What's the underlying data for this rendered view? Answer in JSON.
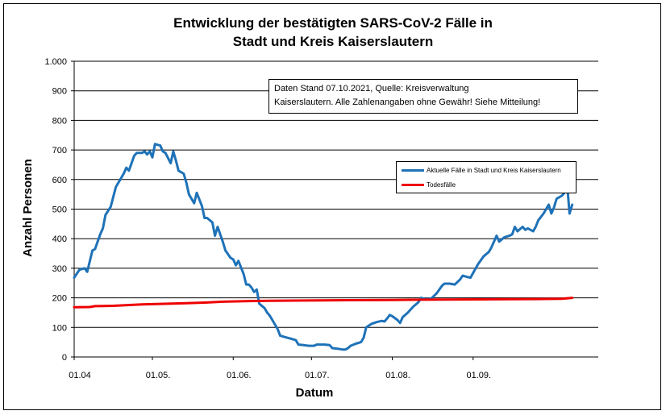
{
  "chart_data": {
    "type": "line",
    "title": [
      "Entwicklung der bestätigten SARS-CoV-2 Fälle in",
      "Stadt und Kreis Kaiserslautern"
    ],
    "xlabel": "Datum",
    "ylabel": "Anzahl Personen",
    "ylim": [
      0,
      1000
    ],
    "yticks": [
      0,
      100,
      200,
      300,
      400,
      500,
      600,
      700,
      800,
      900,
      1000
    ],
    "ytick_labels": [
      "0",
      "100",
      "200",
      "300",
      "400",
      "500",
      "600",
      "700",
      "800",
      "900",
      "1.000"
    ],
    "xlim": [
      "2021-04-01",
      "2021-10-07"
    ],
    "xticks": [
      "2021-04-01",
      "2021-05-01",
      "2021-06-01",
      "2021-07-01",
      "2021-08-01",
      "2021-09-01"
    ],
    "xtick_labels": [
      "01.04",
      "01.05.",
      "01.06.",
      "01.07.",
      "01.08.",
      "01.09."
    ],
    "grid": "horizontal",
    "legend_position": "right",
    "annotation": [
      "Daten Stand 07.10.2021, Quelle: Kreisverwaltung",
      "Kaiserslautern. Alle Zahlenangaben ohne Gewähr! Siehe Mitteilung!"
    ],
    "series": [
      {
        "name": "Aktuelle Fälle in Stadt und Kreis Kaiserslautern",
        "color": "#1e72b8",
        "points": [
          [
            "2021-04-01",
            268
          ],
          [
            "2021-04-03",
            295
          ],
          [
            "2021-04-05",
            300
          ],
          [
            "2021-04-06",
            288
          ],
          [
            "2021-04-08",
            360
          ],
          [
            "2021-04-09",
            365
          ],
          [
            "2021-04-11",
            415
          ],
          [
            "2021-04-12",
            435
          ],
          [
            "2021-04-13",
            480
          ],
          [
            "2021-04-15",
            508
          ],
          [
            "2021-04-17",
            575
          ],
          [
            "2021-04-19",
            605
          ],
          [
            "2021-04-20",
            620
          ],
          [
            "2021-04-21",
            640
          ],
          [
            "2021-04-22",
            630
          ],
          [
            "2021-04-24",
            680
          ],
          [
            "2021-04-25",
            690
          ],
          [
            "2021-04-27",
            690
          ],
          [
            "2021-04-28",
            695
          ],
          [
            "2021-04-29",
            685
          ],
          [
            "2021-04-30",
            695
          ],
          [
            "2021-05-01",
            675
          ],
          [
            "2021-05-02",
            720
          ],
          [
            "2021-05-04",
            715
          ],
          [
            "2021-05-05",
            695
          ],
          [
            "2021-05-06",
            690
          ],
          [
            "2021-05-08",
            655
          ],
          [
            "2021-05-09",
            695
          ],
          [
            "2021-05-10",
            665
          ],
          [
            "2021-05-11",
            630
          ],
          [
            "2021-05-13",
            620
          ],
          [
            "2021-05-14",
            590
          ],
          [
            "2021-05-15",
            550
          ],
          [
            "2021-05-17",
            520
          ],
          [
            "2021-05-18",
            555
          ],
          [
            "2021-05-20",
            510
          ],
          [
            "2021-05-21",
            470
          ],
          [
            "2021-05-22",
            470
          ],
          [
            "2021-05-24",
            455
          ],
          [
            "2021-05-25",
            410
          ],
          [
            "2021-05-26",
            440
          ],
          [
            "2021-05-28",
            390
          ],
          [
            "2021-05-29",
            360
          ],
          [
            "2021-05-31",
            335
          ],
          [
            "2021-06-01",
            330
          ],
          [
            "2021-06-02",
            310
          ],
          [
            "2021-06-03",
            325
          ],
          [
            "2021-06-05",
            280
          ],
          [
            "2021-06-06",
            245
          ],
          [
            "2021-06-07",
            245
          ],
          [
            "2021-06-08",
            235
          ],
          [
            "2021-06-09",
            220
          ],
          [
            "2021-06-10",
            228
          ],
          [
            "2021-06-11",
            180
          ],
          [
            "2021-06-13",
            165
          ],
          [
            "2021-06-14",
            150
          ],
          [
            "2021-06-15",
            140
          ],
          [
            "2021-06-17",
            110
          ],
          [
            "2021-06-18",
            95
          ],
          [
            "2021-06-19",
            72
          ],
          [
            "2021-06-21",
            67
          ],
          [
            "2021-06-23",
            62
          ],
          [
            "2021-06-25",
            57
          ],
          [
            "2021-06-26",
            42
          ],
          [
            "2021-06-28",
            40
          ],
          [
            "2021-06-30",
            38
          ],
          [
            "2021-07-02",
            38
          ],
          [
            "2021-07-03",
            42
          ],
          [
            "2021-07-06",
            42
          ],
          [
            "2021-07-08",
            40
          ],
          [
            "2021-07-09",
            30
          ],
          [
            "2021-07-11",
            28
          ],
          [
            "2021-07-13",
            25
          ],
          [
            "2021-07-14",
            25
          ],
          [
            "2021-07-15",
            30
          ],
          [
            "2021-07-16",
            38
          ],
          [
            "2021-07-18",
            45
          ],
          [
            "2021-07-20",
            50
          ],
          [
            "2021-07-21",
            65
          ],
          [
            "2021-07-22",
            100
          ],
          [
            "2021-07-24",
            112
          ],
          [
            "2021-07-26",
            118
          ],
          [
            "2021-07-28",
            122
          ],
          [
            "2021-07-29",
            120
          ],
          [
            "2021-07-30",
            130
          ],
          [
            "2021-07-31",
            142
          ],
          [
            "2021-08-01",
            138
          ],
          [
            "2021-08-03",
            125
          ],
          [
            "2021-08-04",
            115
          ],
          [
            "2021-08-05",
            135
          ],
          [
            "2021-08-07",
            150
          ],
          [
            "2021-08-09",
            170
          ],
          [
            "2021-08-11",
            185
          ],
          [
            "2021-08-12",
            200
          ],
          [
            "2021-08-14",
            195
          ],
          [
            "2021-08-16",
            198
          ],
          [
            "2021-08-18",
            215
          ],
          [
            "2021-08-20",
            240
          ],
          [
            "2021-08-21",
            248
          ],
          [
            "2021-08-23",
            248
          ],
          [
            "2021-08-25",
            245
          ],
          [
            "2021-08-27",
            262
          ],
          [
            "2021-08-28",
            275
          ],
          [
            "2021-08-30",
            270
          ],
          [
            "2021-08-31",
            268
          ],
          [
            "2021-09-02",
            300
          ],
          [
            "2021-09-03",
            315
          ],
          [
            "2021-09-05",
            340
          ],
          [
            "2021-09-07",
            355
          ],
          [
            "2021-09-08",
            370
          ],
          [
            "2021-09-10",
            410
          ],
          [
            "2021-09-11",
            390
          ],
          [
            "2021-09-13",
            405
          ],
          [
            "2021-09-15",
            410
          ],
          [
            "2021-09-16",
            415
          ],
          [
            "2021-09-17",
            440
          ],
          [
            "2021-09-18",
            425
          ],
          [
            "2021-09-20",
            440
          ],
          [
            "2021-09-21",
            430
          ],
          [
            "2021-09-22",
            435
          ],
          [
            "2021-09-24",
            425
          ],
          [
            "2021-09-25",
            440
          ],
          [
            "2021-09-26",
            462
          ],
          [
            "2021-09-28",
            485
          ],
          [
            "2021-09-29",
            500
          ],
          [
            "2021-09-30",
            515
          ],
          [
            "2021-10-01",
            485
          ],
          [
            "2021-10-02",
            505
          ],
          [
            "2021-10-03",
            535
          ],
          [
            "2021-10-04",
            540
          ],
          [
            "2021-10-05",
            545
          ],
          [
            "2021-10-06",
            555
          ],
          [
            "2021-10-07",
            590
          ],
          [
            "2021-10-08",
            485
          ],
          [
            "2021-10-09",
            515
          ]
        ]
      },
      {
        "name": "Todesfälle",
        "color": "#ee0000",
        "points": [
          [
            "2021-04-01",
            168
          ],
          [
            "2021-04-07",
            169
          ],
          [
            "2021-04-09",
            172
          ],
          [
            "2021-04-16",
            173
          ],
          [
            "2021-04-23",
            176
          ],
          [
            "2021-04-27",
            178
          ],
          [
            "2021-05-07",
            180
          ],
          [
            "2021-05-14",
            182
          ],
          [
            "2021-05-21",
            184
          ],
          [
            "2021-05-28",
            187
          ],
          [
            "2021-06-07",
            189
          ],
          [
            "2021-06-15",
            190
          ],
          [
            "2021-06-30",
            191
          ],
          [
            "2021-07-15",
            192
          ],
          [
            "2021-08-01",
            193
          ],
          [
            "2021-08-20",
            194
          ],
          [
            "2021-09-10",
            195
          ],
          [
            "2021-09-25",
            196
          ],
          [
            "2021-10-05",
            197
          ],
          [
            "2021-10-09",
            200
          ]
        ]
      }
    ]
  }
}
